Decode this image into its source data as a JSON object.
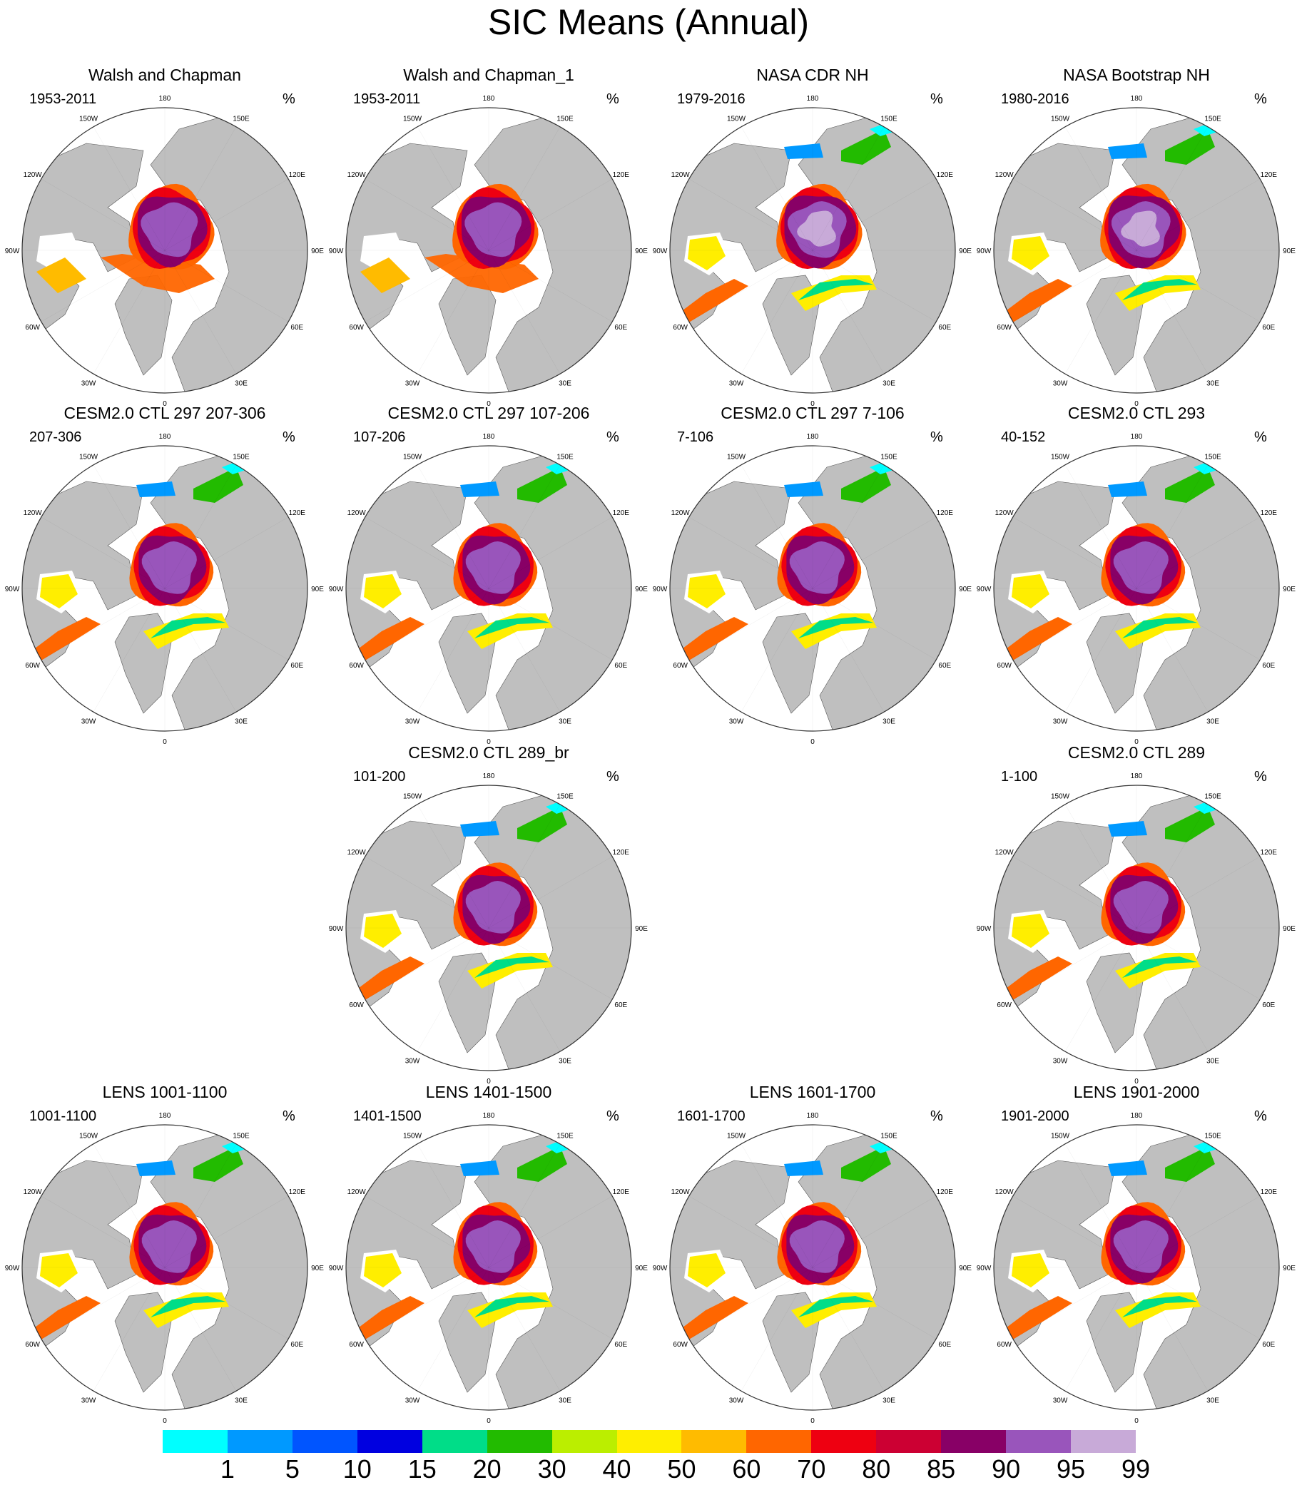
{
  "title": "SIC Means (Annual)",
  "panels": [
    {
      "title": "Walsh and Chapman",
      "years": "1953-2011",
      "units": "%",
      "variant": "obs"
    },
    {
      "title": "Walsh and Chapman_1",
      "years": "1953-2011",
      "units": "%",
      "variant": "obs"
    },
    {
      "title": "NASA CDR NH",
      "years": "1979-2016",
      "units": "%",
      "variant": "sat"
    },
    {
      "title": "NASA Bootstrap NH",
      "years": "1980-2016",
      "units": "%",
      "variant": "sat"
    },
    {
      "title": "CESM2.0 CTL 297 207-306",
      "years": "207-306",
      "units": "%",
      "variant": "model"
    },
    {
      "title": "CESM2.0 CTL 297 107-206",
      "years": "107-206",
      "units": "%",
      "variant": "model"
    },
    {
      "title": "CESM2.0 CTL 297 7-106",
      "years": "7-106",
      "units": "%",
      "variant": "model"
    },
    {
      "title": "CESM2.0 CTL 293",
      "years": "40-152",
      "units": "%",
      "variant": "model"
    },
    {
      "title": "CESM2.0 CTL 289_br",
      "years": "101-200",
      "units": "%",
      "variant": "model"
    },
    {
      "title": "CESM2.0 CTL 289",
      "years": "1-100",
      "units": "%",
      "variant": "model"
    },
    {
      "title": "LENS 1001-1100",
      "years": "1001-1100",
      "units": "%",
      "variant": "lens"
    },
    {
      "title": "LENS 1401-1500",
      "years": "1401-1500",
      "units": "%",
      "variant": "lens"
    },
    {
      "title": "LENS 1601-1700",
      "years": "1601-1700",
      "units": "%",
      "variant": "lens"
    },
    {
      "title": "LENS 1901-2000",
      "years": "1901-2000",
      "units": "%",
      "variant": "lens"
    }
  ],
  "longitude_labels": [
    "180",
    "150E",
    "120E",
    "90E",
    "60E",
    "30E",
    "0",
    "30W",
    "60W",
    "90W",
    "120W",
    "150W"
  ],
  "colorbar": {
    "levels": [
      "1",
      "5",
      "10",
      "15",
      "20",
      "30",
      "40",
      "50",
      "60",
      "70",
      "80",
      "85",
      "90",
      "95",
      "99"
    ],
    "colors": [
      "#00ffff",
      "#0099ff",
      "#0055ff",
      "#0000e0",
      "#00dd88",
      "#22bb00",
      "#bbee00",
      "#ffee00",
      "#ffbb00",
      "#ff6600",
      "#ee0011",
      "#cc0033",
      "#880066",
      "#9955bb",
      "#c8aad8"
    ]
  },
  "colors": {
    "land": "#bfbfbf",
    "ocean": "#ffffff"
  }
}
